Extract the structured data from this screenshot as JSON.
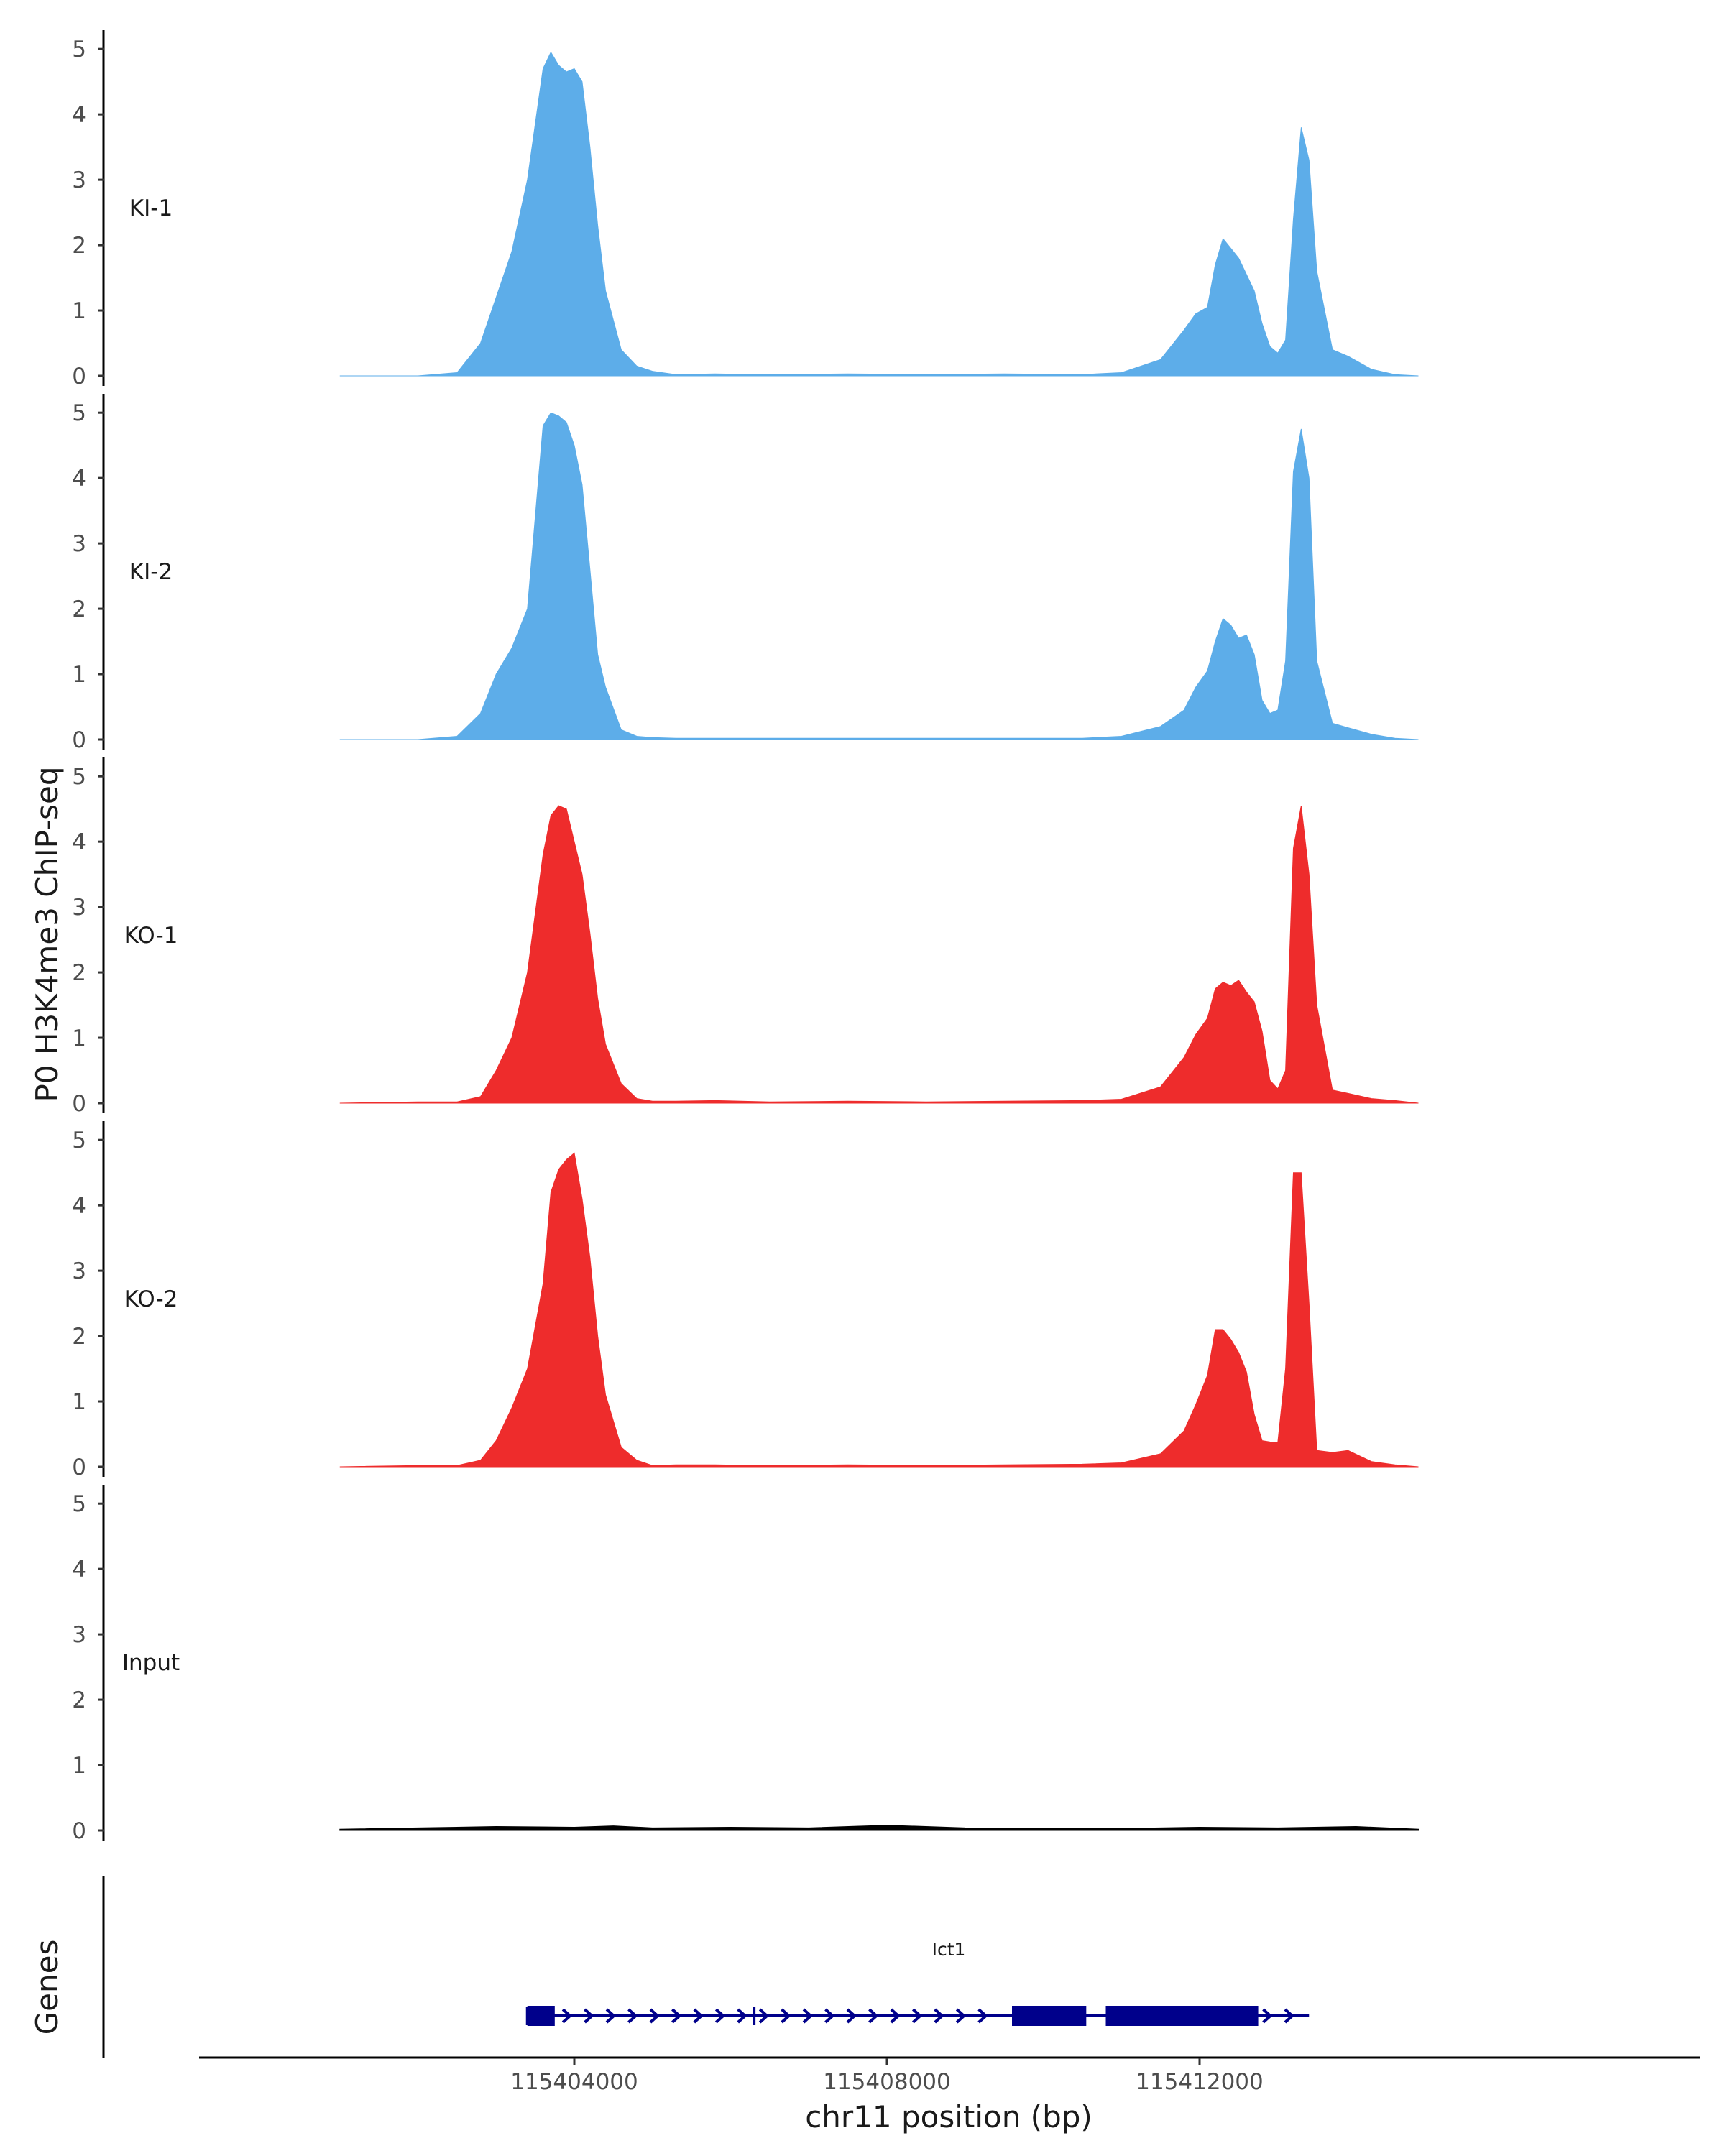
{
  "chart_data": {
    "type": "area",
    "ylabel": "P0 H3K4me3 ChIP-seq",
    "xlabel": "chr11 position (bp)",
    "xlim": [
      115399200,
      115418400
    ],
    "ylim": [
      0,
      5.2
    ],
    "y_ticks": [
      0,
      1,
      2,
      3,
      4,
      5
    ],
    "x_ticks": [
      115404000,
      115408000,
      115412000
    ],
    "x_tick_labels": [
      "115404000",
      "115408000",
      "115412000"
    ],
    "colors": {
      "KI": "#5dade9",
      "KO": "#ee2c2c",
      "Input": "#000000",
      "gene": "#00008b",
      "axis": "#000000"
    },
    "series": [
      {
        "name": "KI-1",
        "color": "#5dade9",
        "x": [
          115401000,
          115402000,
          115402500,
          115402800,
          115403000,
          115403200,
          115403400,
          115403600,
          115403700,
          115403800,
          115403900,
          115404000,
          115404100,
          115404200,
          115404300,
          115404400,
          115404600,
          115404800,
          115405000,
          115405300,
          115405800,
          115406500,
          115407500,
          115408500,
          115409500,
          115410500,
          115411000,
          115411500,
          115411800,
          115411950,
          115412100,
          115412200,
          115412300,
          115412400,
          115412500,
          115412600,
          115412700,
          115412800,
          115412900,
          115413000,
          115413100,
          115413200,
          115413300,
          115413400,
          115413500,
          115413700,
          115413900,
          115414200,
          115414500,
          115414800
        ],
        "values": [
          0,
          0,
          0.05,
          0.5,
          1.2,
          1.9,
          3.0,
          4.7,
          4.95,
          4.75,
          4.65,
          4.7,
          4.5,
          3.5,
          2.3,
          1.3,
          0.4,
          0.15,
          0.07,
          0.02,
          0.03,
          0.02,
          0.03,
          0.02,
          0.03,
          0.02,
          0.05,
          0.25,
          0.7,
          0.95,
          1.05,
          1.7,
          2.1,
          1.95,
          1.8,
          1.55,
          1.3,
          0.8,
          0.45,
          0.35,
          0.55,
          2.4,
          3.8,
          3.3,
          1.6,
          0.4,
          0.3,
          0.1,
          0.02,
          0
        ]
      },
      {
        "name": "KI-2",
        "color": "#5dade9",
        "x": [
          115401000,
          115402000,
          115402500,
          115402800,
          115403000,
          115403200,
          115403400,
          115403600,
          115403700,
          115403800,
          115403900,
          115404000,
          115404100,
          115404200,
          115404300,
          115404400,
          115404600,
          115404800,
          115405000,
          115405300,
          115405800,
          115406500,
          115407500,
          115408500,
          115409500,
          115410500,
          115411000,
          115411500,
          115411800,
          115411950,
          115412100,
          115412200,
          115412300,
          115412400,
          115412500,
          115412600,
          115412700,
          115412800,
          115412900,
          115413000,
          115413100,
          115413200,
          115413300,
          115413400,
          115413500,
          115413700,
          115413900,
          115414200,
          115414500,
          115414800
        ],
        "values": [
          0,
          0,
          0.05,
          0.4,
          1.0,
          1.4,
          2.0,
          4.8,
          5.0,
          4.95,
          4.85,
          4.5,
          3.9,
          2.6,
          1.3,
          0.8,
          0.15,
          0.05,
          0.03,
          0.02,
          0.02,
          0.02,
          0.02,
          0.02,
          0.02,
          0.02,
          0.05,
          0.2,
          0.45,
          0.8,
          1.05,
          1.5,
          1.85,
          1.75,
          1.55,
          1.6,
          1.3,
          0.6,
          0.4,
          0.45,
          1.2,
          4.1,
          4.75,
          4.0,
          1.2,
          0.25,
          0.18,
          0.08,
          0.02,
          0
        ]
      },
      {
        "name": "KO-1",
        "color": "#ee2c2c",
        "x": [
          115401000,
          115402000,
          115402500,
          115402800,
          115403000,
          115403200,
          115403400,
          115403600,
          115403700,
          115403800,
          115403900,
          115404000,
          115404100,
          115404200,
          115404300,
          115404400,
          115404600,
          115404800,
          115405000,
          115405300,
          115405800,
          115406500,
          115407500,
          115408500,
          115409500,
          115410500,
          115411000,
          115411500,
          115411800,
          115411950,
          115412100,
          115412200,
          115412300,
          115412400,
          115412500,
          115412600,
          115412700,
          115412800,
          115412900,
          115413000,
          115413100,
          115413200,
          115413300,
          115413400,
          115413500,
          115413700,
          115413900,
          115414200,
          115414500,
          115414800
        ],
        "values": [
          0,
          0.02,
          0.02,
          0.1,
          0.5,
          1.0,
          2.0,
          3.8,
          4.4,
          4.55,
          4.5,
          4.0,
          3.5,
          2.6,
          1.6,
          0.9,
          0.3,
          0.07,
          0.03,
          0.03,
          0.04,
          0.02,
          0.03,
          0.02,
          0.03,
          0.04,
          0.06,
          0.25,
          0.7,
          1.05,
          1.3,
          1.75,
          1.85,
          1.8,
          1.88,
          1.7,
          1.55,
          1.1,
          0.35,
          0.22,
          0.5,
          3.9,
          4.55,
          3.5,
          1.5,
          0.2,
          0.15,
          0.07,
          0.04,
          0
        ]
      },
      {
        "name": "KO-2",
        "color": "#ee2c2c",
        "x": [
          115401000,
          115402000,
          115402500,
          115402800,
          115403000,
          115403200,
          115403400,
          115403600,
          115403700,
          115403800,
          115403900,
          115404000,
          115404100,
          115404200,
          115404300,
          115404400,
          115404600,
          115404800,
          115405000,
          115405300,
          115405800,
          115406500,
          115407500,
          115408500,
          115409500,
          115410500,
          115411000,
          115411500,
          115411800,
          115411950,
          115412100,
          115412200,
          115412300,
          115412400,
          115412500,
          115412600,
          115412700,
          115412800,
          115412900,
          115413000,
          115413100,
          115413200,
          115413300,
          115413400,
          115413500,
          115413700,
          115413900,
          115414200,
          115414500,
          115414800
        ],
        "values": [
          0,
          0.02,
          0.02,
          0.1,
          0.4,
          0.9,
          1.5,
          2.8,
          4.2,
          4.55,
          4.7,
          4.8,
          4.1,
          3.2,
          2.0,
          1.1,
          0.3,
          0.1,
          0.02,
          0.03,
          0.03,
          0.02,
          0.03,
          0.02,
          0.03,
          0.04,
          0.06,
          0.2,
          0.55,
          0.95,
          1.4,
          2.1,
          2.1,
          1.95,
          1.75,
          1.45,
          0.8,
          0.4,
          0.38,
          0.37,
          1.5,
          4.5,
          4.5,
          2.5,
          0.25,
          0.22,
          0.25,
          0.08,
          0.03,
          0
        ]
      },
      {
        "name": "Input",
        "color": "#000000",
        "x": [
          115401000,
          115402000,
          115403000,
          115404000,
          115404500,
          115405000,
          115406000,
          115407000,
          115408000,
          115409000,
          115410000,
          115411000,
          115412000,
          115413000,
          115414000,
          115414800
        ],
        "values": [
          0.02,
          0.04,
          0.06,
          0.05,
          0.07,
          0.04,
          0.05,
          0.04,
          0.08,
          0.04,
          0.03,
          0.03,
          0.05,
          0.04,
          0.06,
          0.02
        ]
      }
    ],
    "gene_track": {
      "title": "Genes",
      "gene_name": "Ict1",
      "strand": "+",
      "start": 115403400,
      "end": 115413400,
      "tss_markers": [
        115403400,
        115406300
      ],
      "blocks": [
        {
          "start": 115403400,
          "end": 115403750
        },
        {
          "start": 115409600,
          "end": 115410550
        },
        {
          "start": 115410800,
          "end": 115412750
        }
      ]
    }
  }
}
